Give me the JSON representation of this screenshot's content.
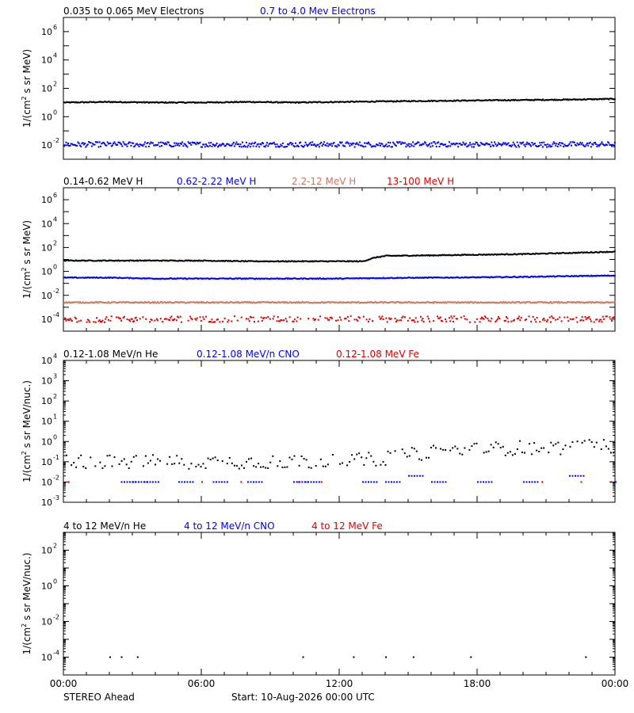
{
  "colors": {
    "black": "#000000",
    "blue": "#0000ff",
    "tan": "#c87860",
    "red": "#e00000"
  },
  "time_axis": {
    "ticks": [
      {
        "hour": 0,
        "label": "00:00"
      },
      {
        "hour": 6,
        "label": "06:00"
      },
      {
        "hour": 12,
        "label": "12:00"
      },
      {
        "hour": 18,
        "label": "18:00"
      },
      {
        "hour": 24,
        "label": "00:00"
      }
    ]
  },
  "footer": {
    "spacecraft": "STEREO Ahead",
    "start": "Start: 10-Aug-2026 00:00 UTC"
  },
  "chart_data": [
    {
      "type": "scatter",
      "ylabel_main": "1/(cm",
      "ylabel_sup": "2",
      "ylabel_rest": " s sr MeV)",
      "log_ylim": [
        -3,
        7
      ],
      "ytick_exponents": [
        -2,
        0,
        2,
        4,
        6
      ],
      "series": [
        {
          "name": "0.035 to 0.065 MeV Electrons",
          "color": "#000000",
          "x": [
            0,
            2,
            4,
            6,
            8,
            10,
            12,
            14,
            16,
            18,
            20,
            22,
            24
          ],
          "y": [
            10,
            11,
            10,
            10,
            11,
            10,
            11,
            12,
            13,
            14,
            15,
            16,
            18
          ]
        },
        {
          "name": "0.7 to 4.0 Mev Electrons",
          "color": "#0000ff",
          "x": [
            0,
            2,
            4,
            6,
            8,
            10,
            12,
            14,
            16,
            18,
            20,
            22,
            24
          ],
          "y": [
            0.011,
            0.011,
            0.011,
            0.011,
            0.011,
            0.011,
            0.011,
            0.011,
            0.011,
            0.011,
            0.011,
            0.011,
            0.011
          ]
        }
      ]
    },
    {
      "type": "scatter",
      "ylabel_main": "1/(cm",
      "ylabel_sup": "2",
      "ylabel_rest": " s sr MeV)",
      "log_ylim": [
        -5,
        7
      ],
      "ytick_exponents": [
        -4,
        -2,
        0,
        2,
        4,
        6
      ],
      "series": [
        {
          "name": "0.14-0.62 MeV H",
          "color": "#000000",
          "x": [
            0,
            2,
            4,
            6,
            8,
            10,
            12,
            13,
            13.5,
            14,
            16,
            18,
            20,
            22,
            24
          ],
          "y": [
            8,
            8,
            8,
            8,
            7,
            7,
            7,
            7,
            14,
            20,
            22,
            25,
            28,
            35,
            45
          ]
        },
        {
          "name": "0.62-2.22 MeV H",
          "color": "#0000ff",
          "x": [
            0,
            2,
            4,
            6,
            8,
            10,
            12,
            14,
            16,
            18,
            20,
            22,
            24
          ],
          "y": [
            0.3,
            0.3,
            0.25,
            0.25,
            0.25,
            0.25,
            0.25,
            0.28,
            0.3,
            0.32,
            0.35,
            0.4,
            0.45
          ]
        },
        {
          "name": "2.2-12 MeV H",
          "color": "#c87860",
          "x": [
            0,
            2,
            4,
            6,
            8,
            10,
            12,
            14,
            16,
            18,
            20,
            22,
            24
          ],
          "y": [
            0.0025,
            0.0025,
            0.0025,
            0.0025,
            0.0025,
            0.0025,
            0.0025,
            0.0025,
            0.0025,
            0.0025,
            0.0025,
            0.0025,
            0.0025
          ]
        },
        {
          "name": "13-100 MeV H",
          "color": "#e00000",
          "x": [
            0,
            2,
            4,
            6,
            8,
            10,
            12,
            14,
            16,
            18,
            20,
            22,
            24
          ],
          "y": [
            0.0001,
            0.0001,
            0.0001,
            0.0001,
            0.0001,
            0.0001,
            0.0001,
            0.0001,
            0.0001,
            0.0001,
            0.0001,
            0.0001,
            0.0001
          ]
        }
      ]
    },
    {
      "type": "scatter",
      "ylabel_main": "1/(cm",
      "ylabel_sup": "2",
      "ylabel_rest": " s sr MeV/nuc.)",
      "log_ylim": [
        -3,
        4
      ],
      "ytick_exponents": [
        -3,
        -2,
        -1,
        0,
        1,
        2,
        3,
        4
      ],
      "series": [
        {
          "name": "0.12-1.08 MeV/n He",
          "color": "#000000",
          "x": [
            0,
            2,
            4,
            6,
            8,
            10,
            12,
            14,
            16,
            18,
            20,
            22,
            24
          ],
          "y": [
            0.1,
            0.1,
            0.1,
            0.1,
            0.1,
            0.1,
            0.1,
            0.15,
            0.3,
            0.4,
            0.5,
            0.5,
            0.6
          ]
        },
        {
          "name": "0.12-1.08 MeV/n CNO",
          "color": "#0000ff",
          "x": [
            2.5,
            3,
            3.5,
            5,
            6.5,
            8,
            10,
            10.5,
            13,
            14,
            15,
            16,
            18,
            20,
            22,
            24
          ],
          "y": [
            0.01,
            0.01,
            0.01,
            0.01,
            0.01,
            0.01,
            0.01,
            0.01,
            0.01,
            0.01,
            0.02,
            0.01,
            0.01,
            0.01,
            0.02,
            0.01
          ]
        },
        {
          "name": "0.12-1.08 MeV Fe",
          "color": "#e00000",
          "x": [
            0.2,
            6,
            7.7,
            10.2,
            11.2,
            20.8,
            22.5,
            23.8
          ],
          "y": [
            0.01,
            0.01,
            0.01,
            0.01,
            0.01,
            0.01,
            0.01,
            0.01
          ]
        }
      ]
    },
    {
      "type": "scatter",
      "ylabel_main": "1/(cm",
      "ylabel_sup": "2",
      "ylabel_rest": " s sr MeV/nuc.)",
      "log_ylim": [
        -5,
        3
      ],
      "ytick_exponents": [
        -4,
        -2,
        0,
        2
      ],
      "series": [
        {
          "name": "4 to 12 MeV/n He",
          "color": "#000000",
          "x": [
            2,
            2.5,
            3.2,
            10.4,
            12.6,
            14,
            15.2,
            17.7,
            22.7
          ],
          "y": [
            0.0001,
            0.0001,
            0.0001,
            0.0001,
            0.0001,
            0.0001,
            0.0001,
            0.0001,
            0.0001
          ]
        },
        {
          "name": "4 to 12 MeV/n CNO",
          "color": "#0000ff",
          "x": [],
          "y": []
        },
        {
          "name": "4 to 12 MeV Fe",
          "color": "#e00000",
          "x": [],
          "y": []
        }
      ]
    }
  ]
}
